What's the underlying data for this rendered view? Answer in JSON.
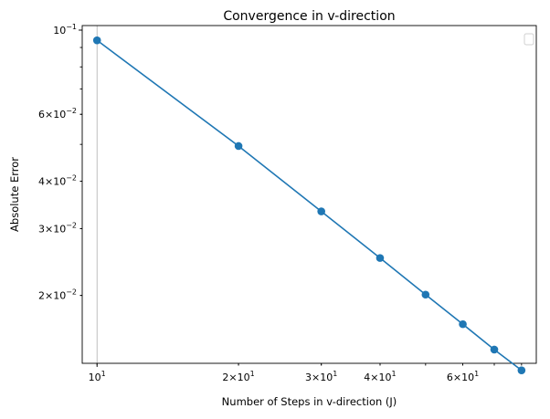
{
  "chart_data": {
    "type": "line",
    "title": "Convergence in v-direction",
    "xlabel": "Number of Steps in v-direction (J)",
    "ylabel": "Absolute Error",
    "xscale": "log",
    "yscale": "log",
    "xlim": [
      9.3,
      86
    ],
    "ylim": [
      0.01325,
      0.1028
    ],
    "grid": "x-major",
    "legend_placement": "top-right",
    "legend_entries": [],
    "x_ticks": [
      {
        "value": 10,
        "base": "10",
        "exp": "1"
      },
      {
        "value": 20,
        "base": "2×10",
        "exp": "1"
      },
      {
        "value": 30,
        "base": "3×10",
        "exp": "1"
      },
      {
        "value": 40,
        "base": "4×10",
        "exp": "1"
      },
      {
        "value": 60,
        "base": "6×10",
        "exp": "1"
      }
    ],
    "y_ticks": [
      {
        "value": 0.1,
        "base": "10",
        "exp": "−1"
      },
      {
        "value": 0.06,
        "base": "6×10",
        "exp": "−2"
      },
      {
        "value": 0.04,
        "base": "4×10",
        "exp": "−2"
      },
      {
        "value": 0.03,
        "base": "3×10",
        "exp": "−2"
      },
      {
        "value": 0.02,
        "base": "2×10",
        "exp": "−2"
      }
    ],
    "series": [
      {
        "color": "#1f77b4",
        "x": [
          10,
          20,
          30,
          40,
          50,
          60,
          70,
          80
        ],
        "y": [
          0.094,
          0.0495,
          0.0333,
          0.0251,
          0.0201,
          0.0168,
          0.0144,
          0.0127
        ]
      }
    ]
  }
}
